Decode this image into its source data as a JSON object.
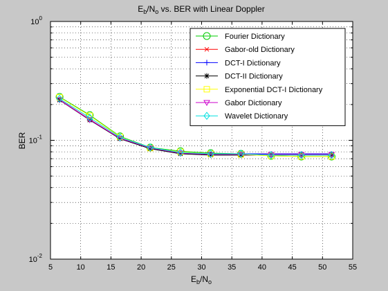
{
  "chart_data": {
    "type": "line",
    "title_parts": {
      "e": "E",
      "b": "b",
      "over": "/N",
      "o": "o",
      "rest": " vs. BER with Linear Doppler"
    },
    "xlabel_parts": {
      "e": "E",
      "b": "b",
      "over": "/N",
      "o": "o"
    },
    "ylabel": "BER",
    "xlim": [
      5,
      55
    ],
    "ylim": [
      0.01,
      1
    ],
    "yscale": "log",
    "grid": true,
    "legend_position": "top-right",
    "xticks": [
      "5",
      "10",
      "15",
      "20",
      "25",
      "30",
      "35",
      "40",
      "45",
      "50",
      "55"
    ],
    "yticks": [
      {
        "base": "10",
        "exp": "0"
      },
      {
        "base": "10",
        "exp": "-1"
      },
      {
        "base": "10",
        "exp": "-2"
      }
    ],
    "x": [
      6.5,
      11.5,
      16.5,
      21.5,
      26.5,
      31.5,
      36.5,
      41.5,
      46.5,
      51.5
    ],
    "series": [
      {
        "name": "Fourier Dictionary",
        "color": "#00cc00",
        "marker": "circle",
        "values": [
          0.232,
          0.163,
          0.108,
          0.087,
          0.081,
          0.078,
          0.077,
          0.074,
          0.073,
          0.073
        ]
      },
      {
        "name": "Gabor-old Dictionary",
        "color": "#ff0000",
        "marker": "x",
        "values": [
          0.22,
          0.15,
          0.104,
          0.086,
          0.078,
          0.076,
          0.076,
          0.076,
          0.076,
          0.076
        ]
      },
      {
        "name": "DCT-I  Dictionary",
        "color": "#0000ff",
        "marker": "plus",
        "values": [
          0.219,
          0.149,
          0.104,
          0.086,
          0.078,
          0.076,
          0.077,
          0.077,
          0.077,
          0.077
        ]
      },
      {
        "name": "DCT-II Dictionary",
        "color": "#000000",
        "marker": "star",
        "values": [
          0.218,
          0.148,
          0.103,
          0.085,
          0.077,
          0.075,
          0.075,
          0.075,
          0.075,
          0.075
        ]
      },
      {
        "name": "Exponential DCT-I  Dictionary",
        "color": "#ffff00",
        "marker": "square",
        "values": [
          0.23,
          0.161,
          0.107,
          0.086,
          0.08,
          0.077,
          0.076,
          0.074,
          0.073,
          0.073
        ]
      },
      {
        "name": "Gabor Dictionary",
        "color": "#cc00cc",
        "marker": "triangle-down",
        "values": [
          0.219,
          0.149,
          0.104,
          0.086,
          0.078,
          0.076,
          0.076,
          0.076,
          0.076,
          0.076
        ]
      },
      {
        "name": "Wavelet Dictionary",
        "color": "#00e0e0",
        "marker": "diamond",
        "values": [
          0.224,
          0.155,
          0.106,
          0.087,
          0.079,
          0.077,
          0.077,
          0.075,
          0.075,
          0.075
        ]
      }
    ]
  }
}
